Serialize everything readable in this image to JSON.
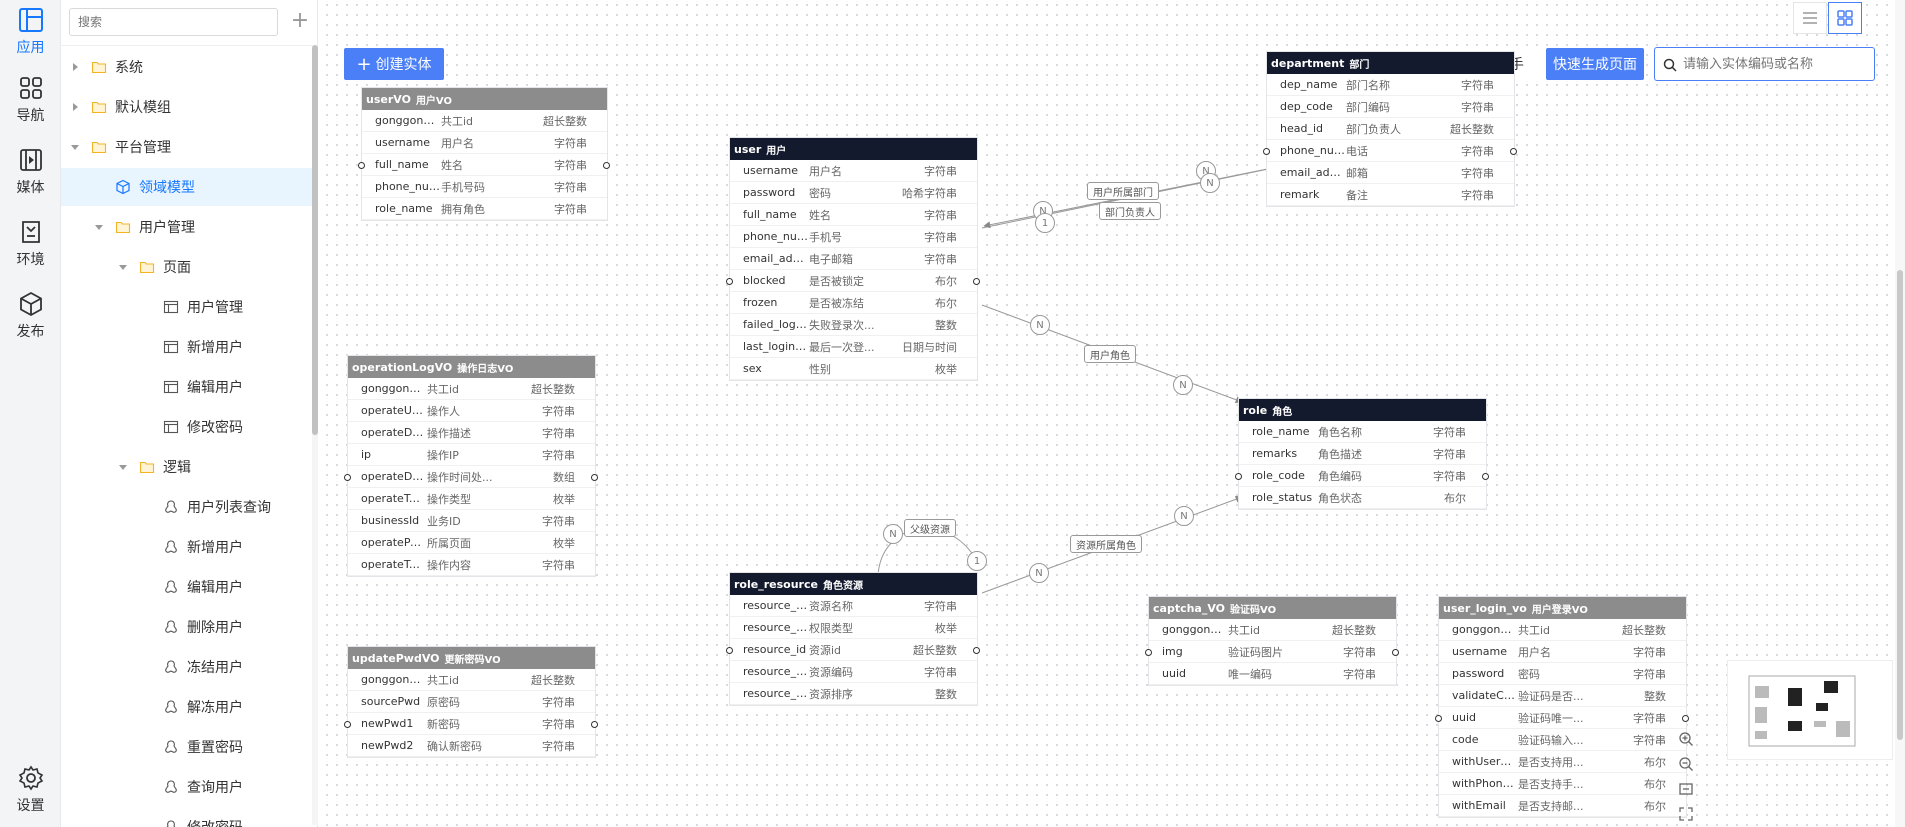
{
  "colors": {
    "accent": "#4a7ff7",
    "entity_header_dark": "#141a2e",
    "entity_header_gray": "#8c8c8c",
    "selected_bg": "#e8f4fe"
  },
  "rail": {
    "items": [
      {
        "label": "应用",
        "icon": "layout-icon",
        "active": true
      },
      {
        "label": "导航",
        "icon": "grid-icon"
      },
      {
        "label": "媒体",
        "icon": "media-icon"
      },
      {
        "label": "环境",
        "icon": "env-icon"
      },
      {
        "label": "发布",
        "icon": "cube-icon"
      }
    ],
    "settings_label": "设置"
  },
  "tree": {
    "search_placeholder": "搜索",
    "add_label": "+",
    "nodes": [
      {
        "label": "系统",
        "kind": "folder",
        "caret": "right",
        "depth": 0
      },
      {
        "label": "默认模组",
        "kind": "folder",
        "caret": "right",
        "depth": 0
      },
      {
        "label": "平台管理",
        "kind": "folder",
        "caret": "down",
        "depth": 0
      },
      {
        "label": "领域模型",
        "kind": "model",
        "caret": "",
        "depth": 1,
        "selected": true
      },
      {
        "label": "用户管理",
        "kind": "folder",
        "caret": "down",
        "depth": 1
      },
      {
        "label": "页面",
        "kind": "folder",
        "caret": "down",
        "depth": 2
      },
      {
        "label": "用户管理",
        "kind": "page",
        "caret": "",
        "depth": 3
      },
      {
        "label": "新增用户",
        "kind": "page",
        "caret": "",
        "depth": 3
      },
      {
        "label": "编辑用户",
        "kind": "page",
        "caret": "",
        "depth": 3
      },
      {
        "label": "修改密码",
        "kind": "page",
        "caret": "",
        "depth": 3
      },
      {
        "label": "逻辑",
        "kind": "folder",
        "caret": "down",
        "depth": 2
      },
      {
        "label": "用户列表查询",
        "kind": "logic",
        "caret": "",
        "depth": 3
      },
      {
        "label": "新增用户",
        "kind": "logic",
        "caret": "",
        "depth": 3
      },
      {
        "label": "编辑用户",
        "kind": "logic",
        "caret": "",
        "depth": 3
      },
      {
        "label": "删除用户",
        "kind": "logic",
        "caret": "",
        "depth": 3
      },
      {
        "label": "冻结用户",
        "kind": "logic",
        "caret": "",
        "depth": 3
      },
      {
        "label": "解冻用户",
        "kind": "logic",
        "caret": "",
        "depth": 3
      },
      {
        "label": "重置密码",
        "kind": "logic",
        "caret": "",
        "depth": 3
      },
      {
        "label": "查询用户",
        "kind": "logic",
        "caret": "",
        "depth": 3
      },
      {
        "label": "修改密码",
        "kind": "logic",
        "caret": "",
        "depth": 3
      }
    ]
  },
  "toolbar": {
    "create_entity": "创建实体",
    "ai_assistant": "AI智能助手",
    "quick_generate": "快速生成页面",
    "entity_search_placeholder": "请输入实体编码或名称"
  },
  "entities": [
    {
      "id": "userVO",
      "name": "userVO",
      "cn": "用户VO",
      "header": "gray",
      "fields": [
        [
          "gonggong_id",
          "共工id",
          "超长整数"
        ],
        [
          "username",
          "用户名",
          "字符串"
        ],
        [
          "full_name",
          "姓名",
          "字符串"
        ],
        [
          "phone_number",
          "手机号码",
          "字符串"
        ],
        [
          "role_name",
          "拥有角色",
          "字符串"
        ]
      ]
    },
    {
      "id": "user",
      "name": "user",
      "cn": "用户",
      "header": "dark",
      "fields": [
        [
          "username",
          "用户名",
          "字符串"
        ],
        [
          "password",
          "密码",
          "哈希字符串"
        ],
        [
          "full_name",
          "姓名",
          "字符串"
        ],
        [
          "phone_number",
          "手机号",
          "字符串"
        ],
        [
          "email_address",
          "电子邮箱",
          "字符串"
        ],
        [
          "blocked",
          "是否被锁定",
          "布尔"
        ],
        [
          "frozen",
          "是否被冻结",
          "布尔"
        ],
        [
          "failed_logins",
          "失败登录次...",
          "整数"
        ],
        [
          "last_login_time",
          "最后一次登...",
          "日期与时间"
        ],
        [
          "sex",
          "性别",
          "枚举"
        ]
      ]
    },
    {
      "id": "department",
      "name": "department",
      "cn": "部门",
      "header": "dark",
      "fields": [
        [
          "dep_name",
          "部门名称",
          "字符串"
        ],
        [
          "dep_code",
          "部门编码",
          "字符串"
        ],
        [
          "head_id",
          "部门负责人",
          "超长整数"
        ],
        [
          "phone_number",
          "电话",
          "字符串"
        ],
        [
          "email_address",
          "邮箱",
          "字符串"
        ],
        [
          "remark",
          "备注",
          "字符串"
        ]
      ]
    },
    {
      "id": "operationLogVO",
      "name": "operationLogVO",
      "cn": "操作日志VO",
      "header": "gray",
      "fields": [
        [
          "gonggong_id",
          "共工id",
          "超长整数"
        ],
        [
          "operateUserN...",
          "操作人",
          "字符串"
        ],
        [
          "operateDetail",
          "操作描述",
          "字符串"
        ],
        [
          "ip",
          "操作IP",
          "字符串"
        ],
        [
          "operateDate",
          "操作时间处...",
          "数组"
        ],
        [
          "operateType",
          "操作类型",
          "枚举"
        ],
        [
          "businessId",
          "业务ID",
          "字符串"
        ],
        [
          "operatePage",
          "所属页面",
          "枚举"
        ],
        [
          "operateType...",
          "操作内容",
          "字符串"
        ]
      ]
    },
    {
      "id": "role",
      "name": "role",
      "cn": "角色",
      "header": "dark",
      "fields": [
        [
          "role_name",
          "角色名称",
          "字符串"
        ],
        [
          "remarks",
          "角色描述",
          "字符串"
        ],
        [
          "role_code",
          "角色编码",
          "字符串"
        ],
        [
          "role_status",
          "角色状态",
          "布尔"
        ]
      ]
    },
    {
      "id": "role_resource",
      "name": "role_resource",
      "cn": "角色资源",
      "header": "dark",
      "fields": [
        [
          "resource_name",
          "资源名称",
          "字符串"
        ],
        [
          "resource_type",
          "权限类型",
          "枚举"
        ],
        [
          "resource_id",
          "资源id",
          "超长整数"
        ],
        [
          "resource_code",
          "资源编码",
          "字符串"
        ],
        [
          "resource_sort",
          "资源排序",
          "整数"
        ]
      ]
    },
    {
      "id": "updatePwdVO",
      "name": "updatePwdVO",
      "cn": "更新密码VO",
      "header": "gray",
      "fields": [
        [
          "gonggong_id",
          "共工id",
          "超长整数"
        ],
        [
          "sourcePwd",
          "原密码",
          "字符串"
        ],
        [
          "newPwd1",
          "新密码",
          "字符串"
        ],
        [
          "newPwd2",
          "确认新密码",
          "字符串"
        ]
      ]
    },
    {
      "id": "captcha_VO",
      "name": "captcha_VO",
      "cn": "验证码VO",
      "header": "gray",
      "fields": [
        [
          "gonggong_id",
          "共工id",
          "超长整数"
        ],
        [
          "img",
          "验证码图片",
          "字符串"
        ],
        [
          "uuid",
          "唯一编码",
          "字符串"
        ]
      ]
    },
    {
      "id": "user_login_vo",
      "name": "user_login_vo",
      "cn": "用户登录VO",
      "header": "gray",
      "fields": [
        [
          "gonggong_id",
          "共工id",
          "超长整数"
        ],
        [
          "username",
          "用户名",
          "字符串"
        ],
        [
          "password",
          "密码",
          "字符串"
        ],
        [
          "validateCode...",
          "验证码是否...",
          "整数"
        ],
        [
          "uuid",
          "验证码唯一...",
          "字符串"
        ],
        [
          "code",
          "验证码输入...",
          "字符串"
        ],
        [
          "withUsername",
          "是否支持用...",
          "布尔"
        ],
        [
          "withPhoneNu...",
          "是否支持手...",
          "布尔"
        ],
        [
          "withEmail",
          "是否支持邮...",
          "布尔"
        ]
      ]
    }
  ],
  "relations": {
    "labels": [
      "用户所属部门",
      "部门负责人",
      "用户角色",
      "父级资源",
      "资源所属角色"
    ],
    "badges": [
      "N",
      "1",
      "N",
      "N",
      "N",
      "N",
      "N",
      "1",
      "N",
      "N"
    ]
  }
}
